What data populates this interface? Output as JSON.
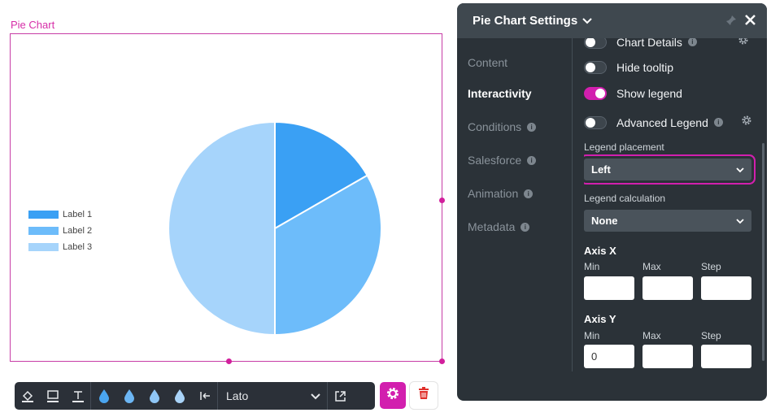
{
  "widget": {
    "label": "Pie Chart"
  },
  "chart_data": {
    "type": "pie",
    "labels": [
      "Label 1",
      "Label 2",
      "Label 3"
    ],
    "values": [
      16.7,
      33.3,
      50
    ],
    "colors": [
      "#3aa0f4",
      "#6dbcfa",
      "#a6d4fb"
    ],
    "legend_placement": "left"
  },
  "toolbar": {
    "icons": [
      "fill-icon",
      "border-icon",
      "text-icon",
      "drop-icon",
      "drop-icon",
      "drop-icon",
      "drop-icon",
      "align-left-icon"
    ],
    "font_value": "Lato",
    "gear_color": "#d21fae"
  },
  "panel": {
    "title": "Pie Chart Settings",
    "nav": [
      {
        "label": "Content",
        "info": false
      },
      {
        "label": "Interactivity",
        "info": false
      },
      {
        "label": "Conditions",
        "info": true
      },
      {
        "label": "Salesforce",
        "info": true
      },
      {
        "label": "Animation",
        "info": true
      },
      {
        "label": "Metadata",
        "info": true
      }
    ],
    "toggles": [
      {
        "label": "Chart Details",
        "on": false
      },
      {
        "label": "Hide tooltip",
        "on": false
      },
      {
        "label": "Show legend",
        "on": true
      },
      {
        "label": "Advanced Legend",
        "on": false
      }
    ],
    "legend_placement_label": "Legend placement",
    "legend_placement_value": "Left",
    "legend_calculation_label": "Legend calculation",
    "legend_calculation_value": "None",
    "axis_x": {
      "title": "Axis X",
      "min_label": "Min",
      "max_label": "Max",
      "step_label": "Step",
      "min": "",
      "max": "",
      "step": ""
    },
    "axis_y": {
      "title": "Axis Y",
      "min_label": "Min",
      "max_label": "Max",
      "step_label": "Step",
      "min": "0",
      "max": "",
      "step": ""
    }
  }
}
